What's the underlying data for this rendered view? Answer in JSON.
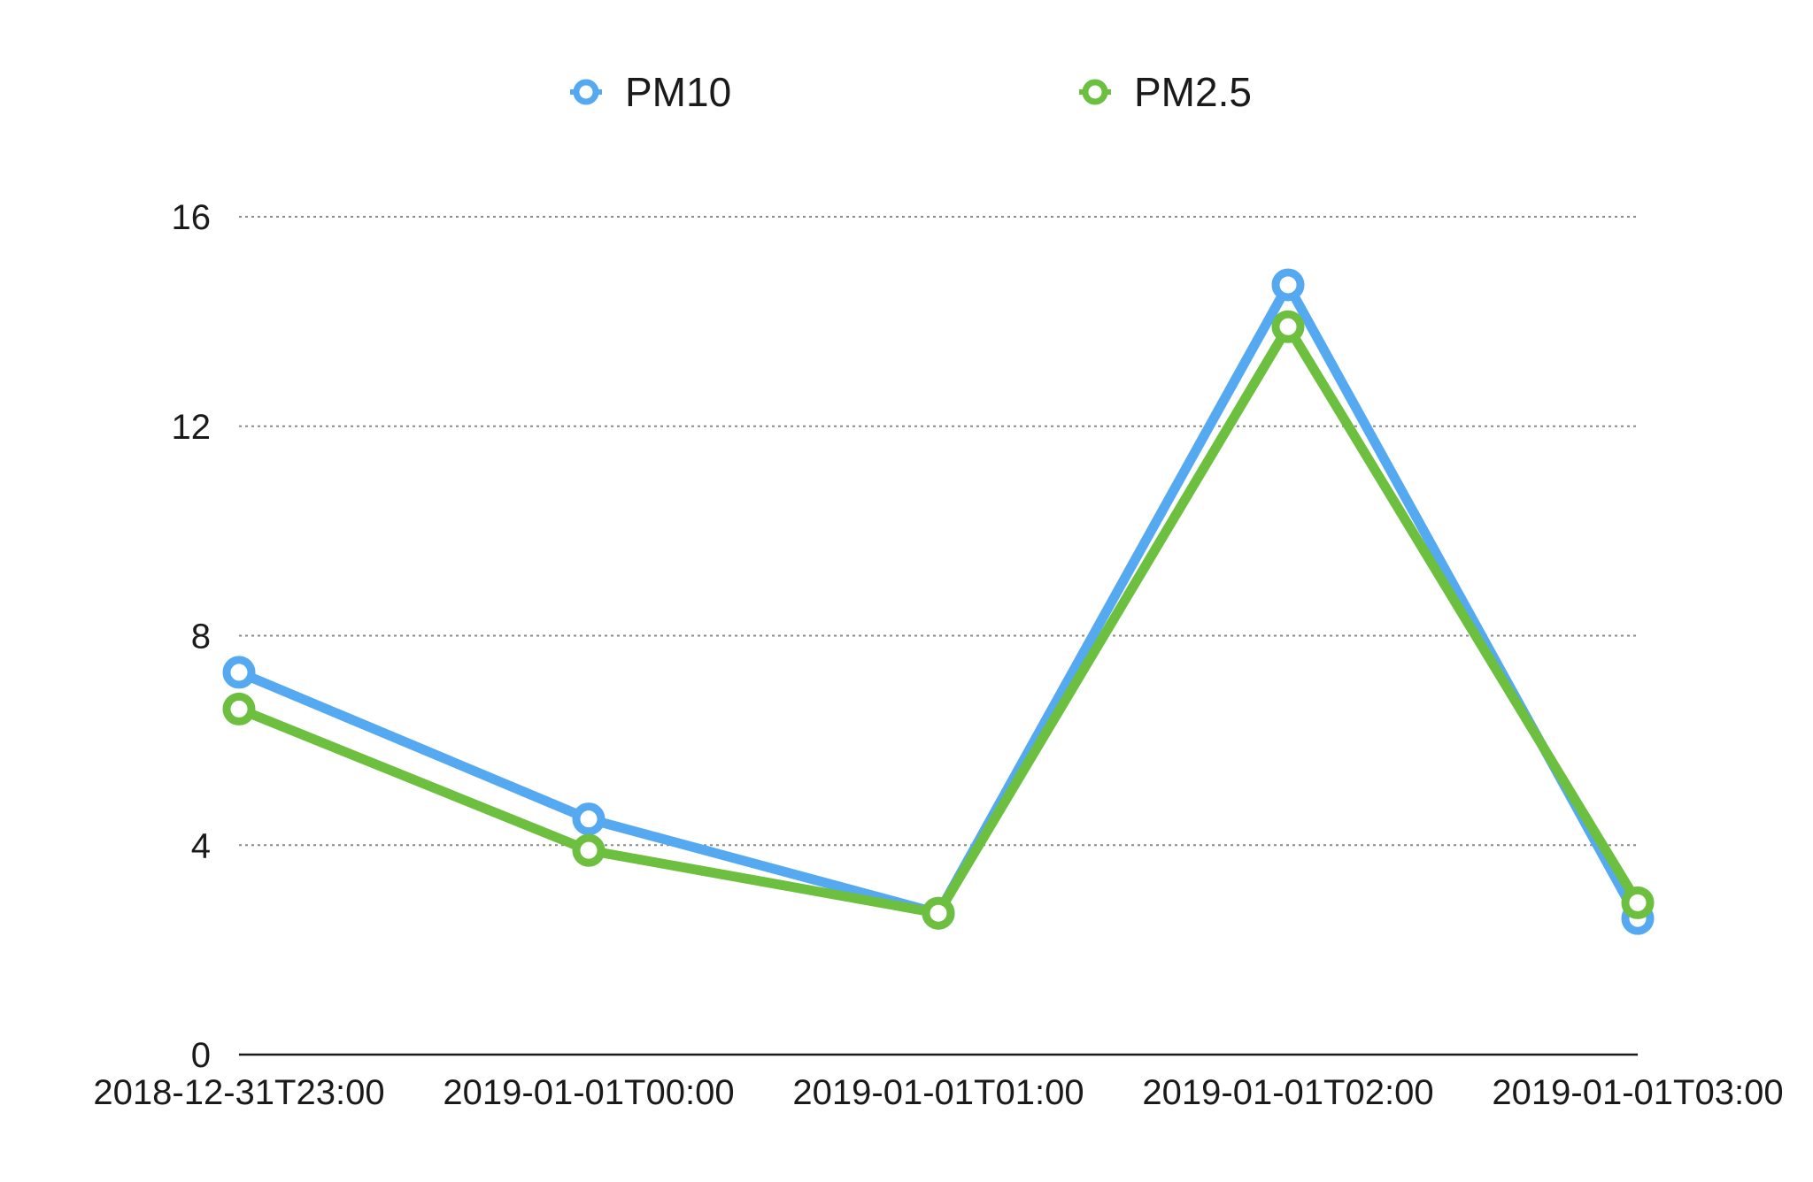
{
  "chart_data": {
    "type": "line",
    "title": "",
    "xlabel": "",
    "ylabel": "",
    "categories": [
      "2018-12-31T23:00",
      "2019-01-01T00:00",
      "2019-01-01T01:00",
      "2019-01-01T02:00",
      "2019-01-01T03:00"
    ],
    "ylim": [
      0,
      16
    ],
    "yticks": [
      0,
      4,
      8,
      12,
      16
    ],
    "grid": true,
    "legend_position": "top",
    "series": [
      {
        "name": "PM10",
        "color": "#55a9f0",
        "values": [
          7.3,
          4.5,
          2.7,
          14.7,
          2.6
        ]
      },
      {
        "name": "PM2.5",
        "color": "#6dbf3f",
        "values": [
          6.6,
          3.9,
          2.7,
          13.9,
          2.9
        ]
      }
    ]
  }
}
